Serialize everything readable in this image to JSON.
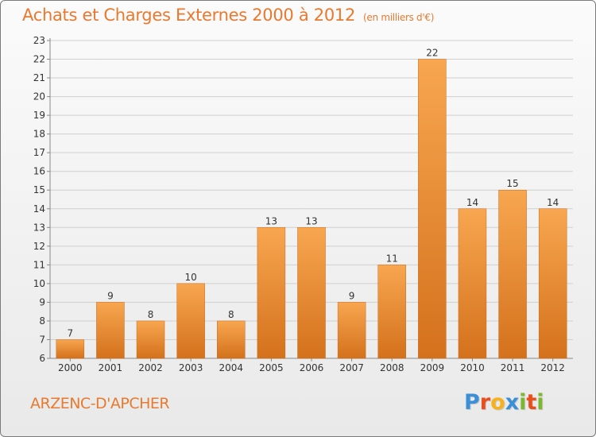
{
  "chart_data": {
    "type": "bar",
    "title": "Achats et Charges Externes 2000 à 2012",
    "subtitle": "(en milliers d'€)",
    "categories": [
      "2000",
      "2001",
      "2002",
      "2003",
      "2004",
      "2005",
      "2006",
      "2007",
      "2008",
      "2009",
      "2010",
      "2011",
      "2012"
    ],
    "values": [
      7,
      9,
      8,
      10,
      8,
      13,
      13,
      9,
      11,
      22,
      14,
      15,
      14
    ],
    "ylim": [
      6,
      23
    ],
    "yticks": [
      6,
      7,
      8,
      9,
      10,
      11,
      12,
      13,
      14,
      15,
      16,
      17,
      18,
      19,
      20,
      21,
      22,
      23
    ],
    "xlabel": "",
    "ylabel": "",
    "grid": true,
    "bar_color_top": "#f8a650",
    "bar_color_bottom": "#d4711c",
    "grid_color": "#d0d0d0"
  },
  "location": "ARZENC-D'APCHER",
  "logo": {
    "letters": [
      "P",
      "r",
      "o",
      "x",
      "i",
      "t",
      "i"
    ],
    "colors": [
      "#3a8fd6",
      "#e94e1b",
      "#f5b21c",
      "#3a8fd6",
      "#7cb82f",
      "#e94e1b",
      "#7cb82f"
    ]
  },
  "accent_color": "#e8792f"
}
